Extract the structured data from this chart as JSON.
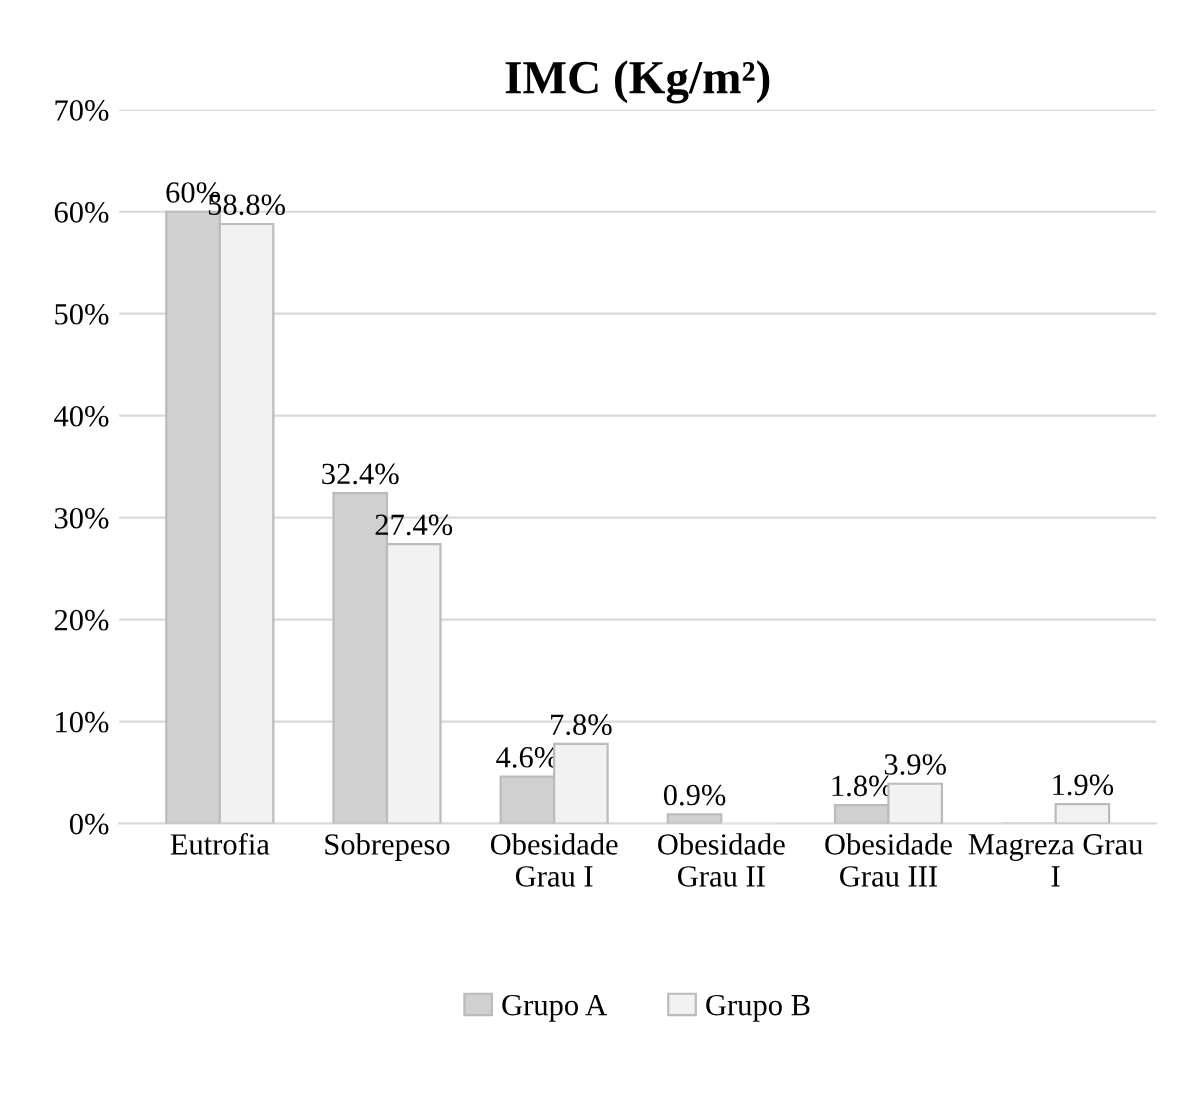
{
  "chart_data": {
    "type": "bar",
    "title": "IMC (Kg/m²)",
    "categories": [
      "Eutrofia",
      "Sobrepeso",
      "Obesidade\nGrau I",
      "Obesidade\nGrau II",
      "Obesidade\nGrau III",
      "Magreza Grau\nI"
    ],
    "series": [
      {
        "name": "Grupo A",
        "color": "#d0d0d0",
        "values": [
          60,
          32.4,
          4.6,
          0.9,
          1.8,
          0
        ],
        "value_labels": [
          "60%",
          "32.4%",
          "4.6%",
          "0.9%",
          "1.8%",
          null
        ]
      },
      {
        "name": "Grupo B",
        "color": "#f2f2f2",
        "values": [
          58.8,
          27.4,
          7.8,
          0,
          3.9,
          1.9
        ],
        "value_labels": [
          "58.8%",
          "27.4%",
          "7.8%",
          null,
          "3.9%",
          "1.9%"
        ]
      }
    ],
    "ylim": [
      0,
      70
    ],
    "yticks": [
      {
        "value": 0,
        "label": "0%"
      },
      {
        "value": 10,
        "label": "10%"
      },
      {
        "value": 20,
        "label": "20%"
      },
      {
        "value": 30,
        "label": "30%"
      },
      {
        "value": 40,
        "label": "40%"
      },
      {
        "value": 50,
        "label": "50%"
      },
      {
        "value": 60,
        "label": "60%"
      },
      {
        "value": 70,
        "label": "70%"
      }
    ],
    "grid": "y",
    "legend": "bottom"
  }
}
